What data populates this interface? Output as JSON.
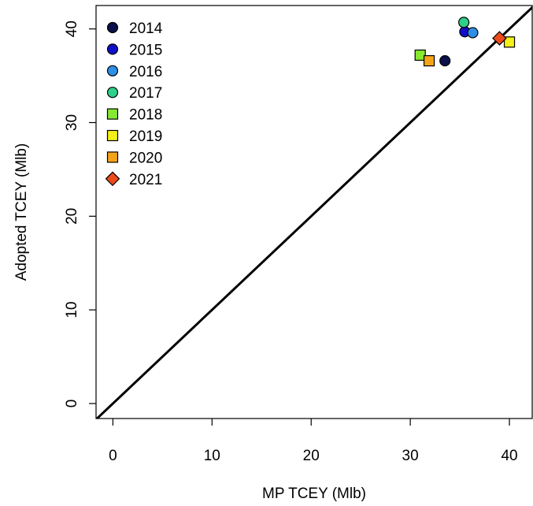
{
  "chart_data": {
    "type": "scatter",
    "title": "",
    "xlabel": "MP TCEY (Mlb)",
    "ylabel": "Adopted TCEY (Mlb)",
    "xlim": [
      -1.7,
      42.3
    ],
    "ylim": [
      -1.6,
      42.5
    ],
    "xticks": [
      "0",
      "10",
      "20",
      "30",
      "40"
    ],
    "yticks": [
      "0",
      "10",
      "20",
      "30",
      "40"
    ],
    "xtick_values": [
      0,
      10,
      20,
      30,
      40
    ],
    "ytick_values": [
      0,
      10,
      20,
      30,
      40
    ],
    "grid": false,
    "legend_position": "top-left",
    "reference_line": "1:1",
    "series": [
      {
        "name": "2014",
        "marker": "circle",
        "color": "#0b0f4a",
        "points": [
          [
            33.5,
            36.6
          ]
        ]
      },
      {
        "name": "2015",
        "marker": "circle",
        "color": "#1010c8",
        "points": [
          [
            35.5,
            39.7
          ]
        ]
      },
      {
        "name": "2016",
        "marker": "circle",
        "color": "#2e8fe6",
        "points": [
          [
            36.3,
            39.6
          ]
        ]
      },
      {
        "name": "2017",
        "marker": "circle",
        "color": "#2fd08a",
        "points": [
          [
            35.4,
            40.7
          ]
        ]
      },
      {
        "name": "2018",
        "marker": "square",
        "color": "#86e830",
        "points": [
          [
            31.0,
            37.2
          ]
        ]
      },
      {
        "name": "2019",
        "marker": "square",
        "color": "#f5f017",
        "points": [
          [
            40.0,
            38.6
          ]
        ]
      },
      {
        "name": "2020",
        "marker": "square",
        "color": "#f5a41a",
        "points": [
          [
            31.9,
            36.6
          ]
        ]
      },
      {
        "name": "2021",
        "marker": "diamond",
        "color": "#ec4a1b",
        "points": [
          [
            39.0,
            39.0
          ]
        ]
      }
    ]
  }
}
